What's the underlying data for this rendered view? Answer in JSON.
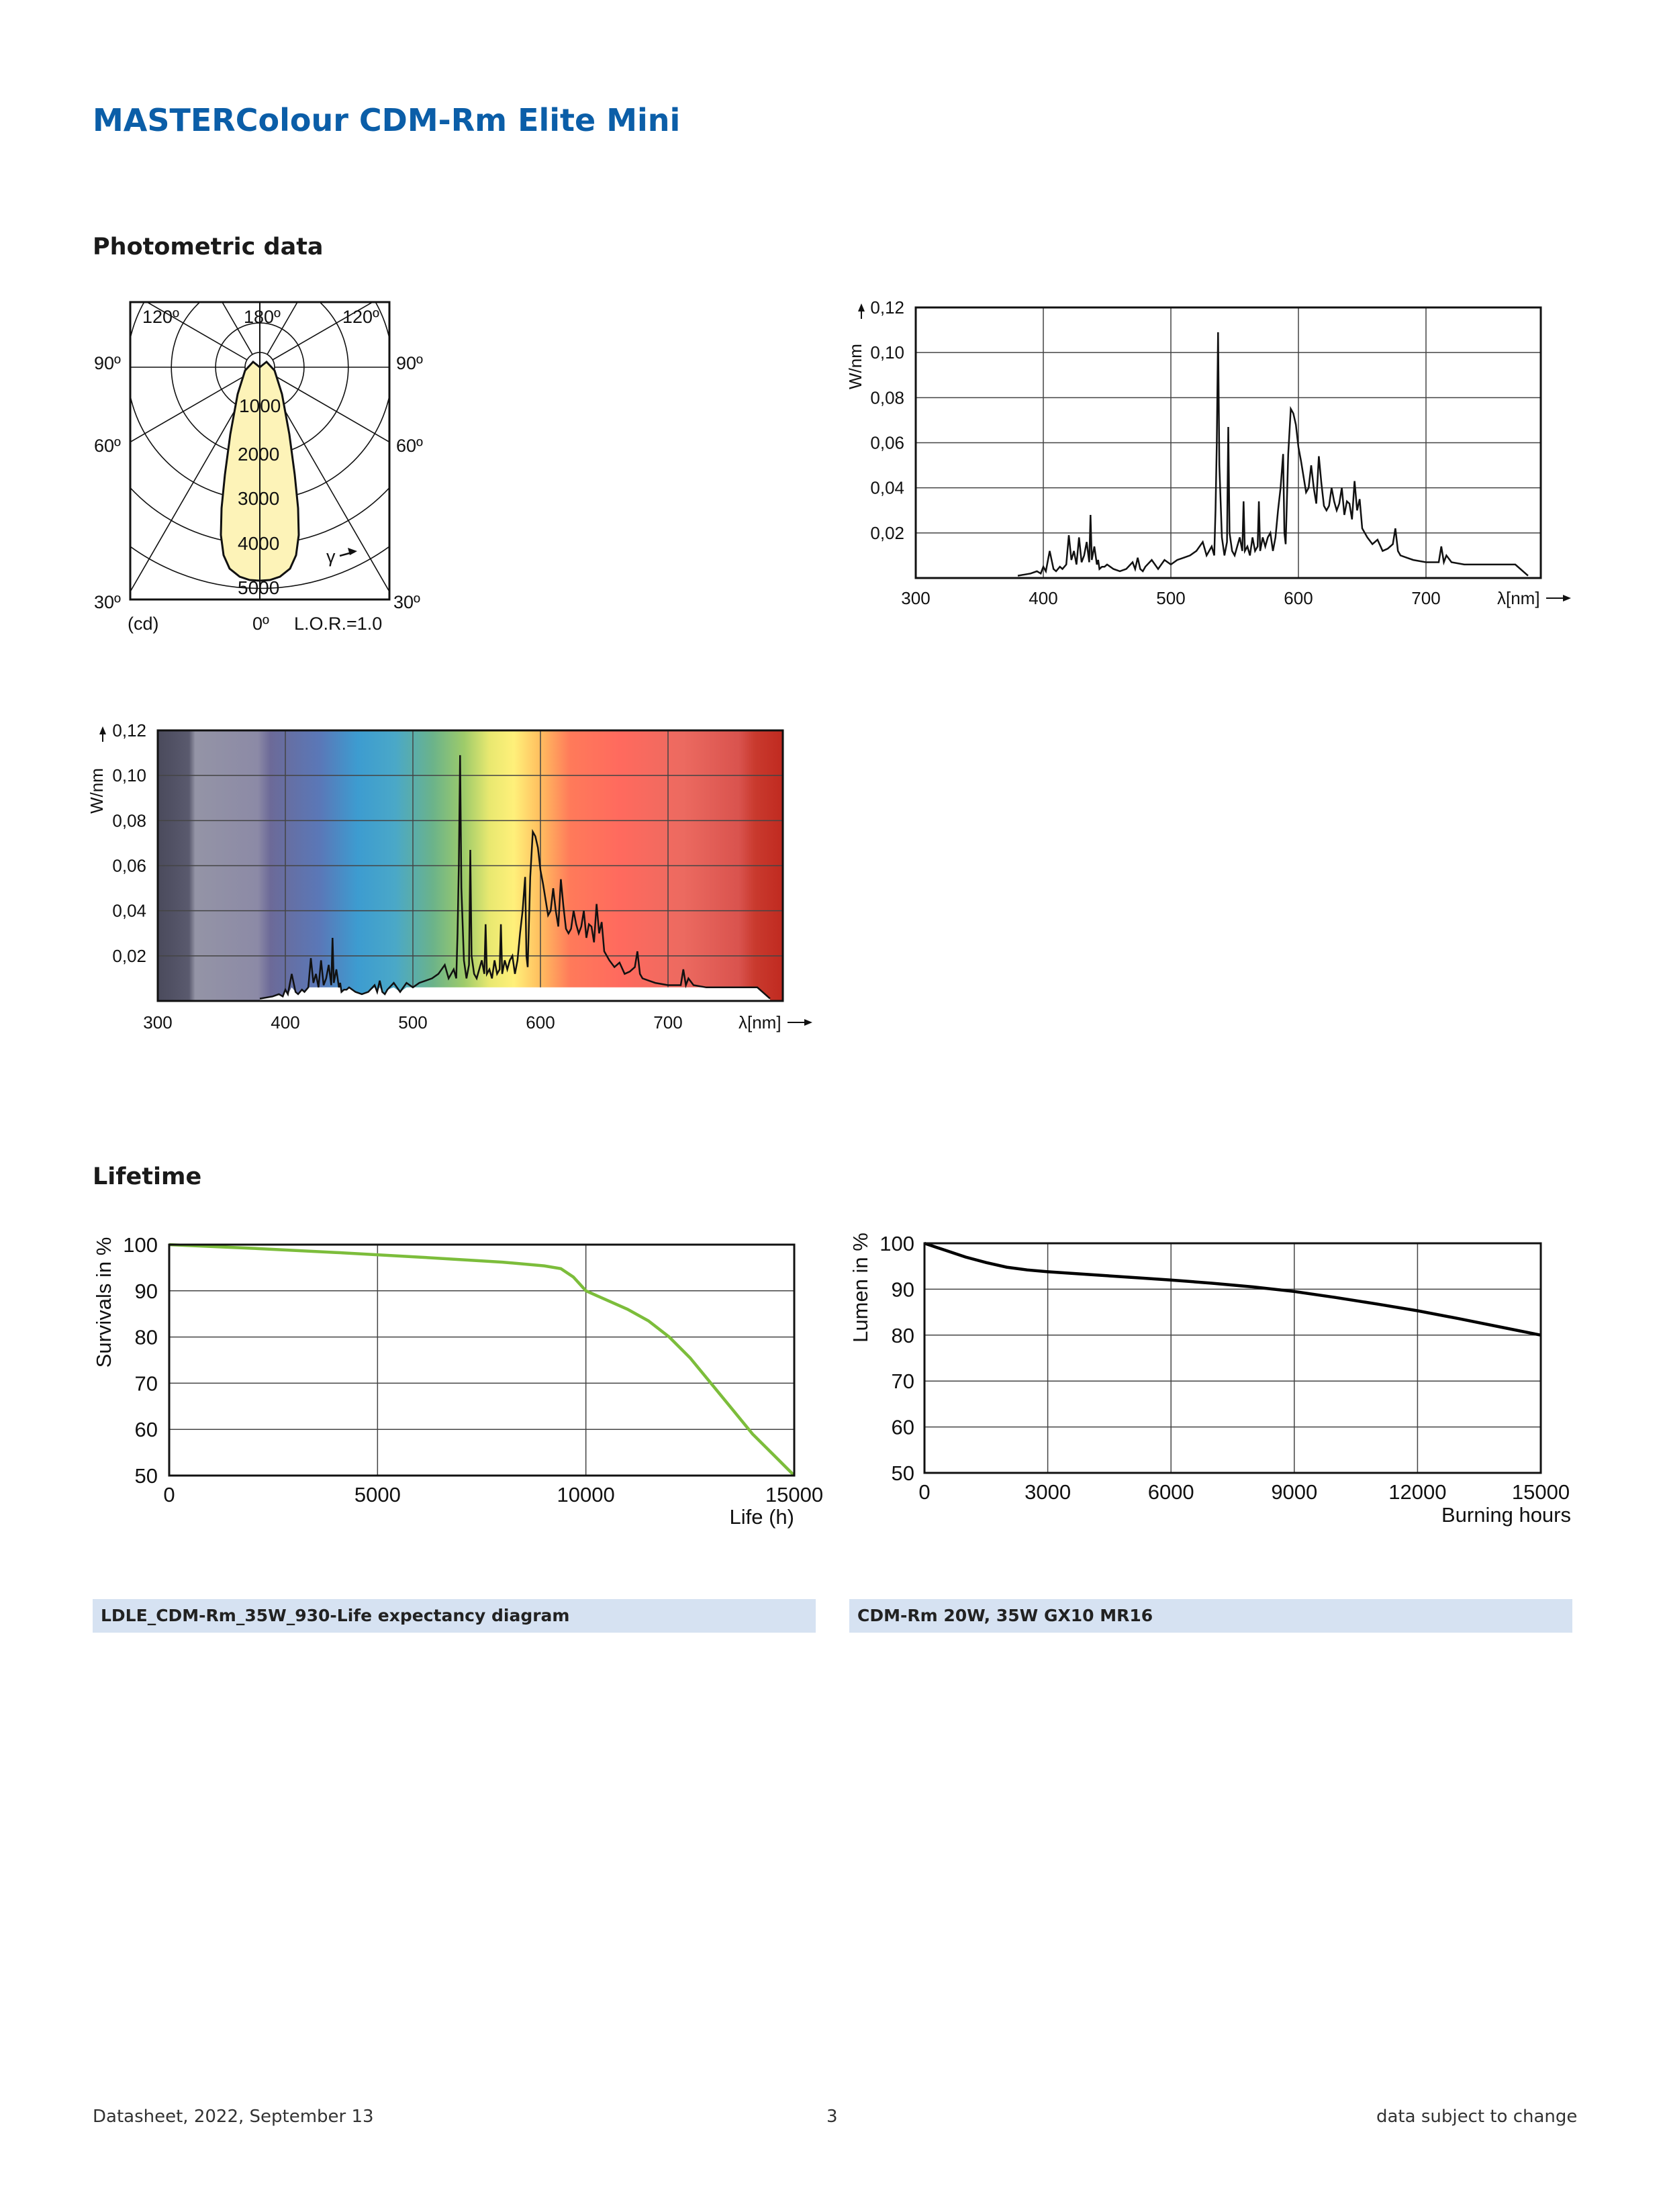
{
  "document": {
    "title": "MASTERColour CDM-Rm Elite Mini"
  },
  "sections": {
    "photometric": "Photometric data",
    "lifetime": "Lifetime"
  },
  "polar_diagram": {
    "angle_labels": {
      "top_left": "120º",
      "top_center": "180º",
      "top_right": "120º",
      "left_90": "90º",
      "right_90": "90º",
      "left_60": "60º",
      "right_60": "60º",
      "left_30": "30º",
      "right_30": "30º",
      "bottom_0": "0º"
    },
    "intensity_labels": [
      "1000",
      "2000",
      "3000",
      "4000",
      "5000"
    ],
    "unit": "(cd)",
    "gamma": "γ",
    "lor": "L.O.R.=1.0",
    "fill_color": "#fdf3b8"
  },
  "chart_data": [
    {
      "type": "line",
      "id": "spectrum-plain",
      "xlabel": "λ[nm]",
      "ylabel": "W/nm",
      "xlim": [
        300,
        790
      ],
      "ylim": [
        0,
        0.12
      ],
      "x_ticks": [
        "300",
        "400",
        "500",
        "600",
        "700"
      ],
      "y_ticks": [
        "0,02",
        "0,04",
        "0,06",
        "0,08",
        "0,10",
        "0,12"
      ],
      "grid": true,
      "series": [
        {
          "x": [
            380,
            390,
            395,
            398,
            400,
            402,
            405,
            408,
            410,
            413,
            415,
            418,
            420,
            422,
            424,
            426,
            428,
            430,
            432,
            434,
            436,
            437,
            438,
            440,
            442,
            443,
            444,
            446,
            448,
            450,
            455,
            460,
            465,
            470,
            472,
            474,
            476,
            478,
            480,
            485,
            490,
            495,
            500,
            505,
            510,
            515,
            520,
            525,
            528,
            530,
            532,
            534,
            535,
            536,
            537,
            538,
            540,
            542,
            544,
            545,
            546,
            548,
            550,
            552,
            554,
            556,
            557,
            558,
            560,
            562,
            564,
            566,
            568,
            569,
            570,
            572,
            574,
            576,
            578,
            580,
            582,
            584,
            586,
            588,
            589,
            590,
            592,
            594,
            596,
            598,
            600,
            602,
            604,
            606,
            608,
            610,
            612,
            614,
            616,
            618,
            620,
            622,
            624,
            626,
            628,
            630,
            632,
            634,
            636,
            638,
            640,
            642,
            644,
            646,
            648,
            650,
            654,
            658,
            662,
            666,
            670,
            674,
            676,
            678,
            680,
            685,
            690,
            700,
            710,
            712,
            714,
            716,
            720,
            730,
            740,
            750,
            760,
            770,
            780
          ],
          "y": [
            0.001,
            0.002,
            0.003,
            0.002,
            0.005,
            0.003,
            0.012,
            0.004,
            0.003,
            0.005,
            0.004,
            0.006,
            0.019,
            0.008,
            0.012,
            0.006,
            0.018,
            0.007,
            0.01,
            0.016,
            0.007,
            0.028,
            0.008,
            0.014,
            0.006,
            0.008,
            0.004,
            0.005,
            0.005,
            0.006,
            0.004,
            0.003,
            0.004,
            0.007,
            0.004,
            0.009,
            0.004,
            0.003,
            0.005,
            0.008,
            0.004,
            0.008,
            0.006,
            0.008,
            0.009,
            0.01,
            0.012,
            0.016,
            0.01,
            0.012,
            0.014,
            0.01,
            0.03,
            0.06,
            0.109,
            0.05,
            0.018,
            0.01,
            0.016,
            0.067,
            0.02,
            0.012,
            0.01,
            0.014,
            0.018,
            0.012,
            0.034,
            0.012,
            0.014,
            0.01,
            0.018,
            0.012,
            0.014,
            0.034,
            0.012,
            0.018,
            0.014,
            0.018,
            0.02,
            0.012,
            0.018,
            0.03,
            0.04,
            0.055,
            0.02,
            0.015,
            0.055,
            0.075,
            0.073,
            0.068,
            0.058,
            0.052,
            0.045,
            0.038,
            0.04,
            0.05,
            0.04,
            0.033,
            0.054,
            0.042,
            0.032,
            0.03,
            0.032,
            0.04,
            0.034,
            0.03,
            0.033,
            0.04,
            0.028,
            0.034,
            0.033,
            0.026,
            0.043,
            0.03,
            0.035,
            0.022,
            0.018,
            0.015,
            0.017,
            0.012,
            0.013,
            0.015,
            0.022,
            0.012,
            0.01,
            0.009,
            0.008,
            0.007,
            0.007,
            0.014,
            0.007,
            0.01,
            0.007,
            0.006,
            0.006,
            0.006,
            0.006,
            0.006,
            0.001
          ]
        }
      ]
    },
    {
      "type": "area",
      "id": "spectrum-colored",
      "xlabel": "λ[nm]",
      "ylabel": "W/nm",
      "xlim": [
        300,
        790
      ],
      "ylim": [
        0,
        0.12
      ],
      "x_ticks": [
        "300",
        "400",
        "500",
        "600",
        "700"
      ],
      "y_ticks": [
        "0,02",
        "0,04",
        "0,06",
        "0,08",
        "0,10",
        "0,12"
      ],
      "grid": true,
      "background": "visible-spectrum color gradient",
      "series_ref": "spectrum-plain"
    },
    {
      "type": "line",
      "id": "survival",
      "xlabel": "Life (h)",
      "ylabel": "Survivals in %",
      "xlim": [
        0,
        15000
      ],
      "ylim": [
        50,
        100
      ],
      "x_ticks": [
        "0",
        "5000",
        "10000",
        "15000"
      ],
      "y_ticks": [
        "50",
        "60",
        "70",
        "80",
        "90",
        "100"
      ],
      "grid": true,
      "line_color": "#7cbd3b",
      "series": [
        {
          "x": [
            0,
            2000,
            4000,
            6000,
            8000,
            9000,
            9400,
            9700,
            10000,
            10500,
            11000,
            11500,
            12000,
            12500,
            13000,
            13500,
            14000,
            14500,
            15000
          ],
          "y": [
            100,
            99.2,
            98.3,
            97.3,
            96.2,
            95.4,
            94.8,
            93.0,
            90.0,
            88.0,
            86.0,
            83.5,
            80.0,
            75.5,
            70.0,
            64.5,
            59.0,
            54.5,
            50.0
          ]
        }
      ]
    },
    {
      "type": "line",
      "id": "lumen",
      "xlabel": "Burning hours",
      "ylabel": "Lumen in %",
      "xlim": [
        0,
        15000
      ],
      "ylim": [
        50,
        100
      ],
      "x_ticks": [
        "0",
        "3000",
        "6000",
        "9000",
        "12000",
        "15000"
      ],
      "y_ticks": [
        "50",
        "60",
        "70",
        "80",
        "90",
        "100"
      ],
      "grid": true,
      "line_color": "#000000",
      "series": [
        {
          "x": [
            0,
            500,
            1000,
            1500,
            2000,
            2500,
            3000,
            4000,
            5000,
            6000,
            7000,
            8000,
            9000,
            10000,
            11000,
            12000,
            13000,
            14000,
            15000
          ],
          "y": [
            100,
            98.5,
            97,
            95.8,
            94.8,
            94.2,
            93.8,
            93.2,
            92.6,
            92.0,
            91.3,
            90.5,
            89.5,
            88.2,
            86.8,
            85.3,
            83.6,
            81.8,
            80.0
          ]
        }
      ]
    }
  ],
  "captions": {
    "life_diagram": "LDLE_CDM-Rm_35W_930-Life expectancy diagram",
    "lumen_diagram": "CDM-Rm 20W, 35W GX10 MR16"
  },
  "footer": {
    "left": "Datasheet, 2022, September 13",
    "center": "3",
    "right": "data subject to change"
  }
}
